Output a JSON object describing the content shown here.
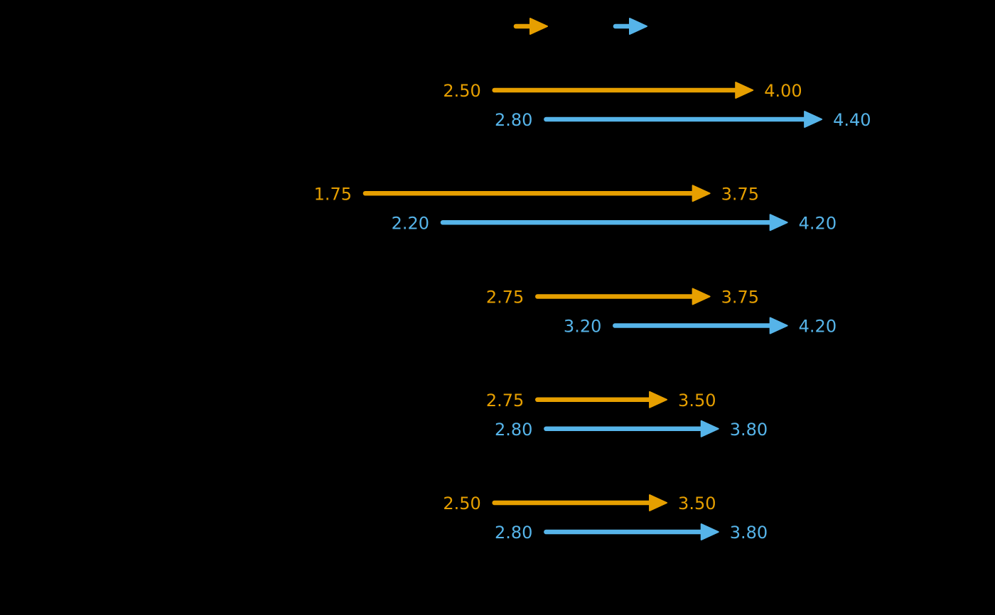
{
  "chart_data": {
    "type": "dumbbell-arrow",
    "orientation": "horizontal",
    "title": "",
    "xlabel": "",
    "ylabel": "",
    "grid": false,
    "background_color": "#000000",
    "legend": {
      "position": "top-center",
      "items": [
        {
          "series": "orange",
          "icon": "right-arrow-icon"
        },
        {
          "series": "blue",
          "icon": "right-arrow-icon"
        }
      ]
    },
    "colors": {
      "orange": "#E69F00",
      "blue": "#56B4E9"
    },
    "value_min_shown": 1.75,
    "value_max_shown": 4.4,
    "groups": [
      {
        "arrows": [
          {
            "series": "orange",
            "start": 2.5,
            "end": 4.0,
            "start_label": "2.50",
            "end_label": "4.00"
          },
          {
            "series": "blue",
            "start": 2.8,
            "end": 4.4,
            "start_label": "2.80",
            "end_label": "4.40"
          }
        ]
      },
      {
        "arrows": [
          {
            "series": "orange",
            "start": 1.75,
            "end": 3.75,
            "start_label": "1.75",
            "end_label": "3.75"
          },
          {
            "series": "blue",
            "start": 2.2,
            "end": 4.2,
            "start_label": "2.20",
            "end_label": "4.20"
          }
        ]
      },
      {
        "arrows": [
          {
            "series": "orange",
            "start": 2.75,
            "end": 3.75,
            "start_label": "2.75",
            "end_label": "3.75"
          },
          {
            "series": "blue",
            "start": 3.2,
            "end": 4.2,
            "start_label": "3.20",
            "end_label": "4.20"
          }
        ]
      },
      {
        "arrows": [
          {
            "series": "orange",
            "start": 2.75,
            "end": 3.5,
            "start_label": "2.75",
            "end_label": "3.50"
          },
          {
            "series": "blue",
            "start": 2.8,
            "end": 3.8,
            "start_label": "2.80",
            "end_label": "3.80"
          }
        ]
      },
      {
        "arrows": [
          {
            "series": "orange",
            "start": 2.5,
            "end": 3.5,
            "start_label": "2.50",
            "end_label": "3.50"
          },
          {
            "series": "blue",
            "start": 2.8,
            "end": 3.8,
            "start_label": "2.80",
            "end_label": "3.80"
          }
        ]
      }
    ]
  }
}
